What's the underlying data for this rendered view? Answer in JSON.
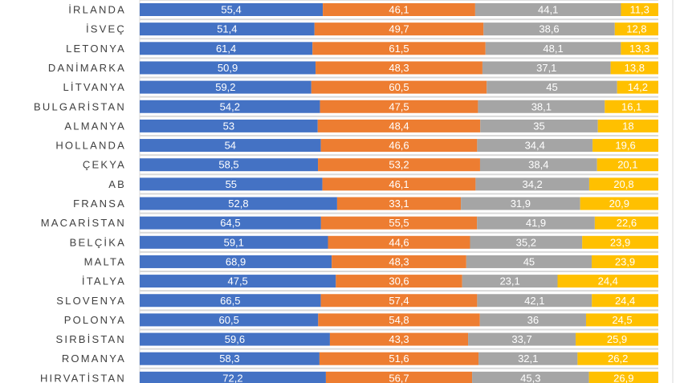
{
  "chart_data": {
    "type": "bar",
    "orientation": "horizontal",
    "stacking": "percent",
    "categories": [
      "İRLANDA",
      "İSVEÇ",
      "LETONYA",
      "DANİMARKA",
      "LİTVANYA",
      "BULGARİSTAN",
      "ALMANYA",
      "HOLLANDA",
      "ÇEKYA",
      "AB",
      "FRANSA",
      "MACARİSTAN",
      "BELÇİKA",
      "MALTA",
      "İTALYA",
      "SLOVENYA",
      "POLONYA",
      "SIRBİSTAN",
      "ROMANYA",
      "HIRVATİSTAN"
    ],
    "series": [
      {
        "color": "#4472C4",
        "values": [
          55.4,
          51.4,
          61.4,
          50.9,
          59.2,
          54.2,
          53,
          54,
          58.5,
          55,
          52.8,
          64.5,
          59.1,
          68.9,
          47.5,
          66.5,
          60.5,
          59.6,
          58.3,
          72.2
        ]
      },
      {
        "color": "#ED7D31",
        "values": [
          46.1,
          49.7,
          61.5,
          48.3,
          60.5,
          47.5,
          48.4,
          46.6,
          53.2,
          46.1,
          33.1,
          55.5,
          44.6,
          48.3,
          30.6,
          57.4,
          54.8,
          43.3,
          51.6,
          56.7
        ]
      },
      {
        "color": "#A5A5A5",
        "values": [
          44.1,
          38.6,
          48.1,
          37.1,
          45,
          38.1,
          35,
          34.4,
          38.4,
          34.2,
          31.9,
          41.9,
          35.2,
          45,
          23.1,
          42.1,
          36,
          33.7,
          32.1,
          45.3
        ]
      },
      {
        "color": "#FFC000",
        "values": [
          11.3,
          12.8,
          13.3,
          13.8,
          14.2,
          16.1,
          18,
          19.6,
          20.1,
          20.8,
          20.9,
          22.6,
          23.9,
          23.9,
          24.4,
          24.4,
          24.5,
          25.9,
          26.2,
          26.9
        ]
      }
    ],
    "data_labels": true,
    "grid": true,
    "decimal_separator": ","
  }
}
